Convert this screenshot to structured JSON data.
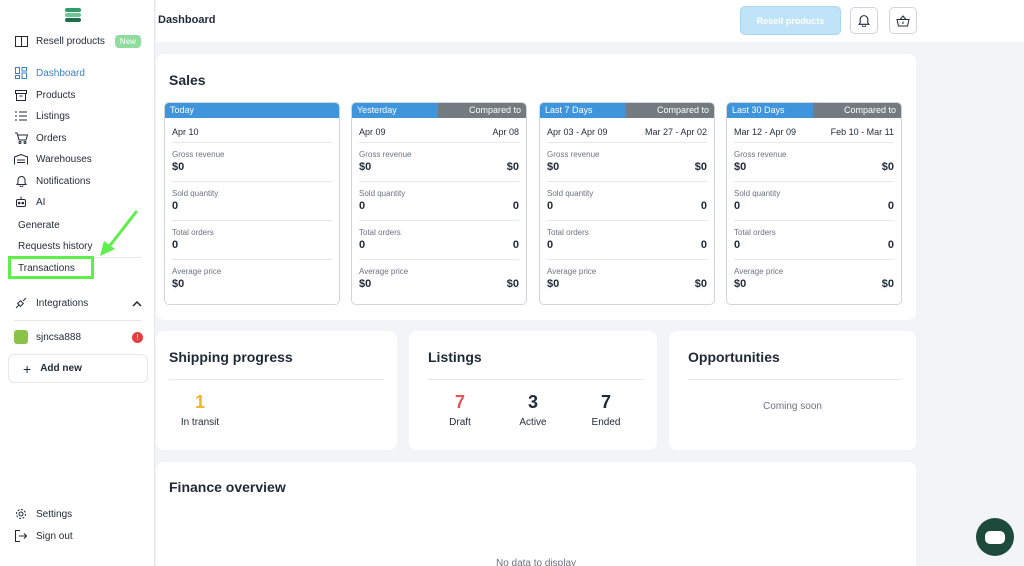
{
  "sidebar": {
    "resell": {
      "label": "Resell products",
      "badge": "New"
    },
    "items": [
      {
        "label": "Dashboard",
        "icon": "dashboard-icon"
      },
      {
        "label": "Products",
        "icon": "box-icon"
      },
      {
        "label": "Listings",
        "icon": "list-icon"
      },
      {
        "label": "Orders",
        "icon": "cart-icon"
      },
      {
        "label": "Warehouses",
        "icon": "warehouse-icon"
      },
      {
        "label": "Notifications",
        "icon": "bell-icon"
      },
      {
        "label": "AI",
        "icon": "robot-icon"
      }
    ],
    "ai_sub": [
      "Generate",
      "Requests history",
      "Transactions"
    ],
    "integrations": "Integrations",
    "store": {
      "name": "sjncsa888",
      "alert": "!"
    },
    "add_new": "Add new",
    "settings": "Settings",
    "sign_out": "Sign out"
  },
  "header": {
    "title": "Dashboard",
    "resell_button": "Resell products"
  },
  "sales": {
    "title": "Sales",
    "labels": {
      "gross": "Gross revenue",
      "sold": "Sold quantity",
      "orders": "Total orders",
      "avg": "Average price"
    },
    "periods": [
      {
        "head": "Today",
        "compare_head": "",
        "date": "Apr 10",
        "compare_date": "",
        "gross": "$0",
        "gross_c": "",
        "sold": "0",
        "sold_c": "",
        "orders": "0",
        "orders_c": "",
        "avg": "$0",
        "avg_c": ""
      },
      {
        "head": "Yesterday",
        "compare_head": "Compared to",
        "date": "Apr 09",
        "compare_date": "Apr 08",
        "gross": "$0",
        "gross_c": "$0",
        "sold": "0",
        "sold_c": "0",
        "orders": "0",
        "orders_c": "0",
        "avg": "$0",
        "avg_c": "$0"
      },
      {
        "head": "Last 7 Days",
        "compare_head": "Compared to",
        "date": "Apr 03 - Apr 09",
        "compare_date": "Mar 27 - Apr 02",
        "gross": "$0",
        "gross_c": "$0",
        "sold": "0",
        "sold_c": "0",
        "orders": "0",
        "orders_c": "0",
        "avg": "$0",
        "avg_c": "$0"
      },
      {
        "head": "Last 30 Days",
        "compare_head": "Compared to",
        "date": "Mar 12 - Apr 09",
        "compare_date": "Feb 10 - Mar 11",
        "gross": "$0",
        "gross_c": "$0",
        "sold": "0",
        "sold_c": "0",
        "orders": "0",
        "orders_c": "0",
        "avg": "$0",
        "avg_c": "$0"
      }
    ]
  },
  "shipping": {
    "title": "Shipping progress",
    "value": "1",
    "label": "In transit"
  },
  "listings": {
    "title": "Listings",
    "draft": "7",
    "draft_label": "Draft",
    "active": "3",
    "active_label": "Active",
    "ended": "7",
    "ended_label": "Ended"
  },
  "opportunities": {
    "title": "Opportunities",
    "text": "Coming soon"
  },
  "finance": {
    "title": "Finance overview",
    "empty": "No data to display"
  },
  "colors": {
    "accent": "#3f95dc",
    "compare": "#737b80",
    "draft": "#e05656",
    "transit": "#f0b429",
    "highlight": "#5ef04a"
  }
}
